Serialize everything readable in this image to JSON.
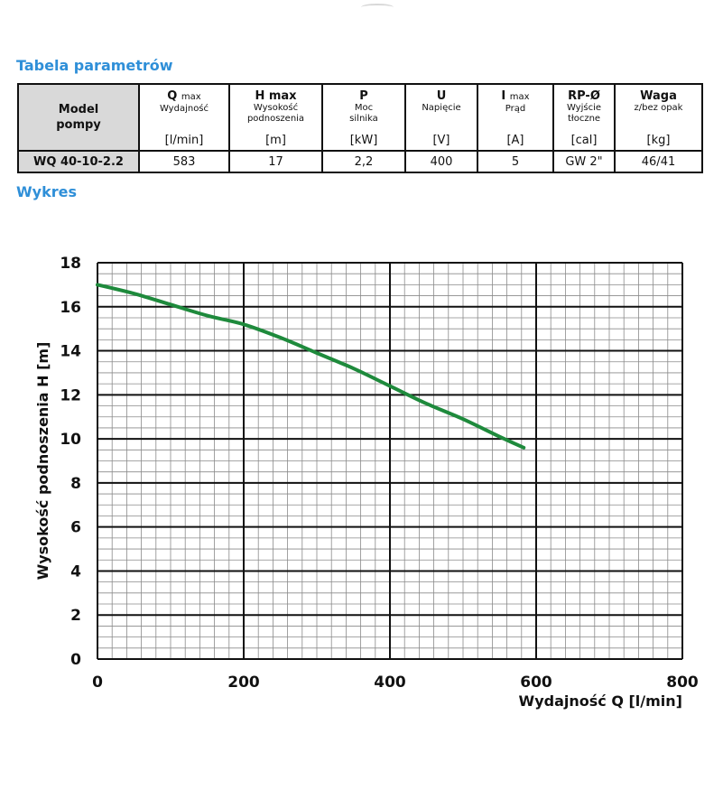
{
  "params_section": {
    "title": "Tabela parametrów",
    "headers": [
      {
        "main": "Model",
        "main2": "pompy"
      },
      {
        "main": "Q",
        "suffix": "max",
        "sub1": "Wydajność",
        "sub2": "",
        "unit": "[l/min]"
      },
      {
        "main": "H max",
        "suffix": "",
        "sub1": "Wysokość",
        "sub2": "podnoszenia",
        "unit": "[m]"
      },
      {
        "main": "P",
        "suffix": "",
        "sub1": "Moc",
        "sub2": "silnika",
        "unit": "[kW]"
      },
      {
        "main": "U",
        "suffix": "",
        "sub1": "Napięcie",
        "sub2": "",
        "unit": "[V]"
      },
      {
        "main": "I",
        "suffix": "max",
        "sub1": "Prąd",
        "sub2": "",
        "unit": "[A]"
      },
      {
        "main": "RP-Ø",
        "suffix": "",
        "sub1": "Wyjście",
        "sub2": "tłoczne",
        "unit": "[cal]"
      },
      {
        "main": "Waga",
        "suffix": "",
        "sub1": "z/bez opak",
        "sub2": "",
        "unit": "[kg]"
      }
    ],
    "row": [
      "WQ 40-10-2.2",
      "583",
      "17",
      "2,2",
      "400",
      "5",
      "GW 2\"",
      "46/41"
    ]
  },
  "chart_section": {
    "title": "Wykres"
  },
  "chart_data": {
    "type": "line",
    "title": "",
    "xlabel": "Wydajność Q [l/min]",
    "ylabel": "Wysokość podnoszenia H [m]",
    "xlim": [
      0,
      800
    ],
    "ylim": [
      0,
      18
    ],
    "xticks": [
      "0",
      "200",
      "400",
      "600",
      "800"
    ],
    "yticks": [
      "0",
      "2",
      "4",
      "6",
      "8",
      "10",
      "12",
      "14",
      "16",
      "18"
    ],
    "grid": true,
    "series": [
      {
        "name": "WQ 40-10-2.2",
        "color": "#1e8a3c",
        "x": [
          0,
          50,
          100,
          150,
          200,
          250,
          300,
          350,
          400,
          450,
          500,
          550,
          583
        ],
        "y": [
          17.0,
          16.6,
          16.1,
          15.6,
          15.2,
          14.6,
          13.9,
          13.2,
          12.4,
          11.6,
          10.9,
          10.1,
          9.6
        ]
      }
    ]
  }
}
